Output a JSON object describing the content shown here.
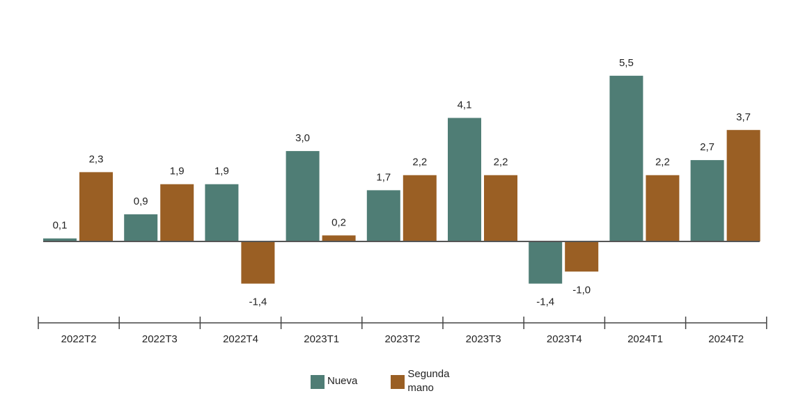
{
  "chart_data": {
    "type": "bar",
    "categories": [
      "2022T2",
      "2022T3",
      "2022T4",
      "2023T1",
      "2023T2",
      "2023T3",
      "2023T4",
      "2024T1",
      "2024T2"
    ],
    "series": [
      {
        "name": "Nueva",
        "color": "#4f7d75",
        "values": [
          0.1,
          0.9,
          1.9,
          3.0,
          1.7,
          4.1,
          -1.4,
          5.5,
          2.7
        ],
        "labels": [
          "0,1",
          "0,9",
          "1,9",
          "3,0",
          "1,7",
          "4,1",
          "-1,4",
          "5,5",
          "2,7"
        ]
      },
      {
        "name": "Segunda mano",
        "color": "#9a5f24",
        "values": [
          2.3,
          1.9,
          -1.4,
          0.2,
          2.2,
          2.2,
          -1.0,
          2.2,
          3.7
        ],
        "labels": [
          "2,3",
          "1,9",
          "-1,4",
          "0,2",
          "2,2",
          "2,2",
          "-1,0",
          "2,2",
          "3,7"
        ]
      }
    ],
    "title": "",
    "xlabel": "",
    "ylabel": "",
    "ylim": [
      -1.4,
      5.5
    ],
    "grid": false,
    "legend_position": "bottom"
  },
  "legend": {
    "nueva_label": "Nueva",
    "segunda_label": "Segunda mano"
  }
}
